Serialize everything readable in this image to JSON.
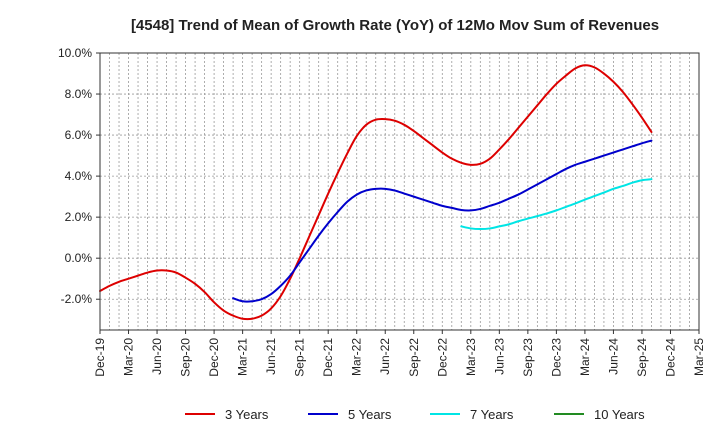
{
  "chart_data": {
    "type": "line",
    "title": "[4548]  Trend of Mean of Growth Rate (YoY) of 12Mo Mov Sum of Revenues",
    "xlabel": "",
    "ylabel": "",
    "ylim": [
      -3.5,
      10.0
    ],
    "grid": true,
    "legend_position": "bottom",
    "y_ticks": [
      {
        "value": 10.0,
        "label": "10.0%"
      },
      {
        "value": 8.0,
        "label": "8.0%"
      },
      {
        "value": 6.0,
        "label": "6.0%"
      },
      {
        "value": 4.0,
        "label": "4.0%"
      },
      {
        "value": 2.0,
        "label": "2.0%"
      },
      {
        "value": 0.0,
        "label": "0.0%"
      },
      {
        "value": -2.0,
        "label": "-2.0%"
      }
    ],
    "x_start": "Dec-19",
    "x_end": "Mar-25",
    "x_tick_labels": [
      "Dec-19",
      "Mar-20",
      "Jun-20",
      "Sep-20",
      "Dec-20",
      "Mar-21",
      "Jun-21",
      "Sep-21",
      "Dec-21",
      "Mar-22",
      "Jun-22",
      "Sep-22",
      "Dec-22",
      "Mar-23",
      "Jun-23",
      "Sep-23",
      "Dec-23",
      "Mar-24",
      "Jun-24",
      "Sep-24",
      "Dec-24",
      "Mar-25"
    ],
    "series": [
      {
        "name": "3 Years",
        "color": "#dd0000",
        "points": [
          [
            0,
            -1.6
          ],
          [
            1,
            -1.35
          ],
          [
            2,
            -1.15
          ],
          [
            3,
            -1.0
          ],
          [
            4,
            -0.85
          ],
          [
            5,
            -0.7
          ],
          [
            6,
            -0.6
          ],
          [
            7,
            -0.6
          ],
          [
            8,
            -0.7
          ],
          [
            9,
            -0.95
          ],
          [
            10,
            -1.25
          ],
          [
            11,
            -1.65
          ],
          [
            12,
            -2.15
          ],
          [
            13,
            -2.55
          ],
          [
            14,
            -2.8
          ],
          [
            15,
            -2.95
          ],
          [
            16,
            -2.95
          ],
          [
            17,
            -2.8
          ],
          [
            18,
            -2.45
          ],
          [
            19,
            -1.85
          ],
          [
            20,
            -1.0
          ],
          [
            21,
            0.0
          ],
          [
            22,
            1.05
          ],
          [
            23,
            2.1
          ],
          [
            24,
            3.15
          ],
          [
            25,
            4.15
          ],
          [
            26,
            5.1
          ],
          [
            27,
            5.95
          ],
          [
            28,
            6.5
          ],
          [
            29,
            6.75
          ],
          [
            30,
            6.78
          ],
          [
            31,
            6.7
          ],
          [
            32,
            6.5
          ],
          [
            33,
            6.2
          ],
          [
            34,
            5.85
          ],
          [
            35,
            5.5
          ],
          [
            36,
            5.15
          ],
          [
            37,
            4.85
          ],
          [
            38,
            4.65
          ],
          [
            39,
            4.55
          ],
          [
            40,
            4.6
          ],
          [
            41,
            4.85
          ],
          [
            42,
            5.3
          ],
          [
            43,
            5.8
          ],
          [
            44,
            6.35
          ],
          [
            45,
            6.9
          ],
          [
            46,
            7.45
          ],
          [
            47,
            8.0
          ],
          [
            48,
            8.5
          ],
          [
            49,
            8.9
          ],
          [
            50,
            9.25
          ],
          [
            51,
            9.4
          ],
          [
            52,
            9.3
          ],
          [
            53,
            9.0
          ],
          [
            54,
            8.6
          ],
          [
            55,
            8.1
          ],
          [
            56,
            7.5
          ],
          [
            57,
            6.85
          ],
          [
            58,
            6.15
          ]
        ]
      },
      {
        "name": "5 Years",
        "color": "#0000cc",
        "points": [
          [
            14,
            -1.95
          ],
          [
            15,
            -2.1
          ],
          [
            16,
            -2.1
          ],
          [
            17,
            -2.0
          ],
          [
            18,
            -1.75
          ],
          [
            19,
            -1.35
          ],
          [
            20,
            -0.85
          ],
          [
            21,
            -0.2
          ],
          [
            22,
            0.45
          ],
          [
            23,
            1.1
          ],
          [
            24,
            1.7
          ],
          [
            25,
            2.25
          ],
          [
            26,
            2.75
          ],
          [
            27,
            3.1
          ],
          [
            28,
            3.3
          ],
          [
            29,
            3.38
          ],
          [
            30,
            3.38
          ],
          [
            31,
            3.3
          ],
          [
            32,
            3.15
          ],
          [
            33,
            3.0
          ],
          [
            34,
            2.85
          ],
          [
            35,
            2.7
          ],
          [
            36,
            2.55
          ],
          [
            37,
            2.45
          ],
          [
            38,
            2.35
          ],
          [
            39,
            2.33
          ],
          [
            40,
            2.4
          ],
          [
            41,
            2.55
          ],
          [
            42,
            2.7
          ],
          [
            43,
            2.9
          ],
          [
            44,
            3.1
          ],
          [
            45,
            3.35
          ],
          [
            46,
            3.6
          ],
          [
            47,
            3.85
          ],
          [
            48,
            4.1
          ],
          [
            49,
            4.35
          ],
          [
            50,
            4.55
          ],
          [
            51,
            4.7
          ],
          [
            52,
            4.85
          ],
          [
            53,
            5.0
          ],
          [
            54,
            5.15
          ],
          [
            55,
            5.3
          ],
          [
            56,
            5.45
          ],
          [
            57,
            5.6
          ],
          [
            58,
            5.73
          ]
        ]
      },
      {
        "name": "7 Years",
        "color": "#00e5e5",
        "points": [
          [
            38,
            1.55
          ],
          [
            39,
            1.45
          ],
          [
            40,
            1.42
          ],
          [
            41,
            1.45
          ],
          [
            42,
            1.55
          ],
          [
            43,
            1.65
          ],
          [
            44,
            1.8
          ],
          [
            45,
            1.93
          ],
          [
            46,
            2.05
          ],
          [
            47,
            2.18
          ],
          [
            48,
            2.33
          ],
          [
            49,
            2.5
          ],
          [
            50,
            2.67
          ],
          [
            51,
            2.85
          ],
          [
            52,
            3.03
          ],
          [
            53,
            3.2
          ],
          [
            54,
            3.38
          ],
          [
            55,
            3.52
          ],
          [
            56,
            3.68
          ],
          [
            57,
            3.8
          ],
          [
            58,
            3.85
          ]
        ]
      },
      {
        "name": "10 Years",
        "color": "#228b22",
        "points": []
      }
    ]
  }
}
